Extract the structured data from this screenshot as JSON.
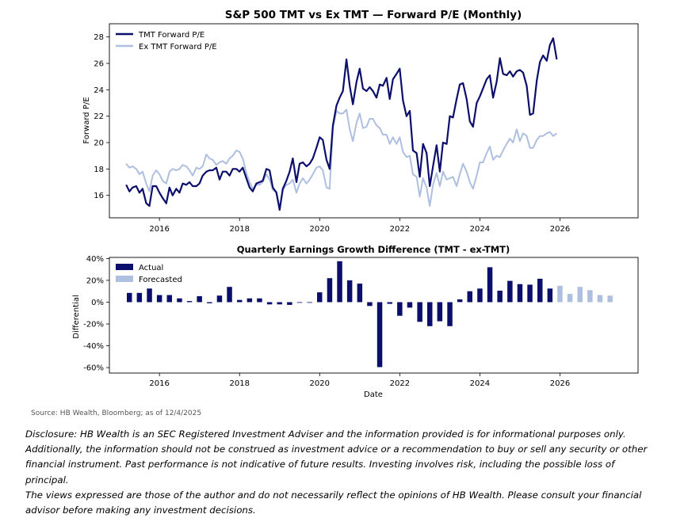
{
  "chart_data": [
    {
      "type": "line",
      "title": "S&P 500 TMT vs Ex TMT — Forward P/E (Monthly)",
      "xlabel": "",
      "ylabel": "Forward P/E",
      "xlim": [
        2014.75,
        2027.95
      ],
      "ylim": [
        14.3,
        29.0
      ],
      "xticks": [
        2016,
        2018,
        2020,
        2022,
        2024,
        2026
      ],
      "yticks": [
        16,
        18,
        20,
        22,
        24,
        26,
        28
      ],
      "legend": "top-left",
      "series": [
        {
          "name": "TMT Forward P/E",
          "color": "#0b0f6b",
          "x": [
            2015.17,
            2015.25,
            2015.33,
            2015.42,
            2015.5,
            2015.58,
            2015.67,
            2015.75,
            2015.83,
            2015.92,
            2016.0,
            2016.08,
            2016.17,
            2016.25,
            2016.33,
            2016.42,
            2016.5,
            2016.58,
            2016.67,
            2016.75,
            2016.83,
            2016.92,
            2017.0,
            2017.08,
            2017.17,
            2017.25,
            2017.33,
            2017.42,
            2017.5,
            2017.58,
            2017.67,
            2017.75,
            2017.83,
            2017.92,
            2018.0,
            2018.08,
            2018.17,
            2018.25,
            2018.33,
            2018.42,
            2018.5,
            2018.58,
            2018.67,
            2018.75,
            2018.83,
            2018.92,
            2019.0,
            2019.08,
            2019.17,
            2019.25,
            2019.33,
            2019.42,
            2019.5,
            2019.58,
            2019.67,
            2019.75,
            2019.83,
            2019.92,
            2020.0,
            2020.08,
            2020.17,
            2020.25,
            2020.33,
            2020.42,
            2020.5,
            2020.58,
            2020.67,
            2020.75,
            2020.83,
            2020.92,
            2021.0,
            2021.08,
            2021.17,
            2021.25,
            2021.33,
            2021.42,
            2021.5,
            2021.58,
            2021.67,
            2021.75,
            2021.83,
            2021.92,
            2022.0,
            2022.08,
            2022.17,
            2022.25,
            2022.33,
            2022.42,
            2022.5,
            2022.58,
            2022.67,
            2022.75,
            2022.83,
            2022.92,
            2023.0,
            2023.08,
            2023.17,
            2023.25,
            2023.33,
            2023.42,
            2023.5,
            2023.58,
            2023.67,
            2023.75,
            2023.83,
            2023.92,
            2024.0,
            2024.08,
            2024.17,
            2024.25,
            2024.33,
            2024.42,
            2024.5,
            2024.58,
            2024.67,
            2024.75,
            2024.83,
            2024.92,
            2025.0,
            2025.08,
            2025.17,
            2025.25,
            2025.33,
            2025.42,
            2025.5,
            2025.58,
            2025.67,
            2025.75,
            2025.83,
            2025.92
          ],
          "values": [
            16.8,
            16.3,
            16.6,
            16.7,
            16.2,
            16.5,
            15.4,
            15.2,
            16.7,
            16.7,
            16.2,
            15.8,
            15.4,
            16.6,
            16.0,
            16.5,
            16.2,
            16.9,
            16.8,
            17.0,
            16.7,
            16.7,
            16.9,
            17.5,
            17.8,
            17.9,
            17.9,
            18.1,
            17.2,
            17.8,
            17.8,
            17.5,
            18.0,
            18.0,
            17.8,
            18.1,
            17.3,
            16.6,
            16.3,
            16.9,
            17.0,
            17.1,
            18.0,
            17.9,
            16.6,
            16.2,
            14.9,
            16.5,
            17.1,
            17.8,
            18.8,
            17.0,
            18.4,
            18.5,
            18.2,
            18.4,
            18.8,
            19.6,
            20.4,
            20.2,
            18.7,
            18.0,
            21.3,
            22.8,
            23.4,
            23.9,
            26.3,
            24.3,
            22.9,
            24.6,
            25.6,
            24.1,
            23.9,
            24.2,
            23.9,
            23.4,
            24.4,
            24.3,
            24.9,
            23.3,
            24.8,
            25.2,
            25.6,
            23.2,
            22.0,
            22.4,
            19.4,
            19.2,
            17.4,
            19.9,
            19.2,
            16.7,
            18.2,
            19.8,
            17.8,
            20.0,
            19.9,
            22.0,
            21.9,
            23.3,
            24.4,
            24.5,
            23.3,
            21.6,
            21.2,
            23.0,
            23.5,
            24.1,
            24.8,
            25.1,
            23.4,
            24.6,
            26.4,
            25.2,
            25.1,
            25.4,
            25.0,
            25.4,
            25.5,
            25.3,
            24.3,
            22.1,
            22.2,
            24.7,
            26.1,
            26.6,
            26.2,
            27.4,
            27.9,
            26.3
          ]
        },
        {
          "name": "Ex TMT Forward P/E",
          "color": "#aebfdf",
          "x": [
            2015.17,
            2015.25,
            2015.33,
            2015.42,
            2015.5,
            2015.58,
            2015.67,
            2015.75,
            2015.83,
            2015.92,
            2016.0,
            2016.08,
            2016.17,
            2016.25,
            2016.33,
            2016.42,
            2016.5,
            2016.58,
            2016.67,
            2016.75,
            2016.83,
            2016.92,
            2017.0,
            2017.08,
            2017.17,
            2017.25,
            2017.33,
            2017.42,
            2017.5,
            2017.58,
            2017.67,
            2017.75,
            2017.83,
            2017.92,
            2018.0,
            2018.08,
            2018.17,
            2018.25,
            2018.33,
            2018.42,
            2018.5,
            2018.58,
            2018.67,
            2018.75,
            2018.83,
            2018.92,
            2019.0,
            2019.08,
            2019.17,
            2019.25,
            2019.33,
            2019.42,
            2019.5,
            2019.58,
            2019.67,
            2019.75,
            2019.83,
            2019.92,
            2020.0,
            2020.08,
            2020.17,
            2020.25,
            2020.33,
            2020.42,
            2020.5,
            2020.58,
            2020.67,
            2020.75,
            2020.83,
            2020.92,
            2021.0,
            2021.08,
            2021.17,
            2021.25,
            2021.33,
            2021.42,
            2021.5,
            2021.58,
            2021.67,
            2021.75,
            2021.83,
            2021.92,
            2022.0,
            2022.08,
            2022.17,
            2022.25,
            2022.33,
            2022.42,
            2022.5,
            2022.58,
            2022.67,
            2022.75,
            2022.83,
            2022.92,
            2023.0,
            2023.08,
            2023.17,
            2023.25,
            2023.33,
            2023.42,
            2023.5,
            2023.58,
            2023.67,
            2023.75,
            2023.83,
            2023.92,
            2024.0,
            2024.08,
            2024.17,
            2024.25,
            2024.33,
            2024.42,
            2024.5,
            2024.58,
            2024.67,
            2024.75,
            2024.83,
            2024.92,
            2025.0,
            2025.08,
            2025.17,
            2025.25,
            2025.33,
            2025.42,
            2025.5,
            2025.58,
            2025.67,
            2025.75,
            2025.83,
            2025.92
          ],
          "values": [
            18.4,
            18.1,
            18.2,
            18.0,
            17.6,
            17.8,
            16.9,
            16.3,
            17.5,
            17.9,
            17.6,
            17.1,
            16.9,
            17.8,
            18.0,
            17.9,
            18.0,
            18.3,
            18.2,
            17.9,
            17.5,
            18.1,
            18.0,
            18.2,
            19.1,
            18.8,
            18.7,
            18.3,
            18.5,
            18.6,
            18.4,
            18.8,
            19.0,
            19.4,
            19.3,
            18.8,
            17.7,
            17.0,
            16.5,
            16.8,
            16.8,
            17.0,
            17.6,
            17.2,
            16.4,
            16.3,
            15.0,
            16.4,
            16.8,
            16.9,
            17.2,
            16.2,
            16.9,
            17.3,
            16.9,
            17.2,
            17.6,
            18.1,
            18.2,
            17.9,
            16.6,
            16.5,
            21.1,
            22.4,
            22.2,
            22.2,
            22.5,
            21.0,
            20.1,
            21.5,
            22.2,
            21.1,
            21.2,
            21.8,
            21.8,
            21.3,
            21.1,
            20.6,
            20.6,
            19.9,
            20.4,
            19.9,
            20.4,
            19.3,
            18.9,
            19.0,
            17.6,
            17.4,
            15.9,
            17.3,
            16.6,
            15.2,
            16.8,
            17.7,
            16.7,
            17.8,
            17.2,
            17.3,
            17.4,
            16.7,
            17.6,
            18.4,
            17.8,
            17.0,
            16.5,
            17.5,
            18.5,
            18.5,
            19.2,
            19.7,
            18.7,
            19.0,
            18.9,
            19.4,
            19.9,
            20.3,
            20.0,
            21.0,
            20.1,
            20.7,
            20.5,
            19.6,
            19.6,
            20.2,
            20.5,
            20.5,
            20.7,
            20.8,
            20.5,
            20.7
          ]
        }
      ]
    },
    {
      "type": "bar",
      "title": "Quarterly Earnings Growth Difference (TMT - ex-TMT)",
      "xlabel": "Date",
      "ylabel": "Differential",
      "xlim": [
        2014.75,
        2027.95
      ],
      "ylim": [
        -65,
        41
      ],
      "xticks": [
        2016,
        2018,
        2020,
        2022,
        2024,
        2026
      ],
      "yticks": [
        40,
        20,
        0,
        -20,
        -40,
        -60
      ],
      "ytick_labels": [
        "40%",
        "20%",
        "0%",
        "-20%",
        "-40%",
        "-60%"
      ],
      "legend": "top-left",
      "series": [
        {
          "name": "Actual",
          "color": "#0b0f6b",
          "x": [
            2015.25,
            2015.5,
            2015.75,
            2016.0,
            2016.25,
            2016.5,
            2016.75,
            2017.0,
            2017.25,
            2017.5,
            2017.75,
            2018.0,
            2018.25,
            2018.5,
            2018.75,
            2019.0,
            2019.25,
            2019.5,
            2019.75,
            2020.0,
            2020.25,
            2020.5,
            2020.75,
            2021.0,
            2021.25,
            2021.5,
            2021.75,
            2022.0,
            2022.25,
            2022.5,
            2022.75,
            2023.0,
            2023.25,
            2023.5,
            2023.75,
            2024.0,
            2024.25,
            2024.5,
            2024.75,
            2025.0,
            2025.25,
            2025.5,
            2025.75
          ],
          "values": [
            8.5,
            8.5,
            12.5,
            6.5,
            6.5,
            3.5,
            1.0,
            5.5,
            -1.0,
            6.0,
            14.0,
            2.0,
            3.5,
            3.5,
            -2.0,
            -2.0,
            -2.5,
            0.0,
            -0.5,
            9.0,
            22.0,
            37.5,
            20.0,
            17.0,
            -3.5,
            -59.5,
            -1.5,
            -12.5,
            -5.0,
            -18.0,
            -22.0,
            -17.5,
            -22.0,
            2.5,
            10.0,
            12.5,
            32.0,
            10.5,
            19.5,
            16.5,
            16.0,
            21.5,
            12.5
          ]
        },
        {
          "name": "Forecasted",
          "color": "#aebfdf",
          "x": [
            2026.0,
            2026.25,
            2026.5,
            2026.75,
            2027.0,
            2027.25
          ],
          "values": [
            15.0,
            7.5,
            14.0,
            11.0,
            6.5,
            6.0
          ]
        }
      ]
    }
  ],
  "source": "Source: HB Wealth, Bloomberg; as of 12/4/2025",
  "disclosure_lines": [
    "Disclosure: HB Wealth is an SEC Registered Investment Adviser and the information provided is for informational purposes only.",
    "Additionally, the information should not be construed as investment advice or a recommendation to buy or sell any security or other",
    "financial instrument. Past performance is not indicative of future results. Investing involves risk, including the possible loss of principal.",
    "The views expressed are those of the author and do not necessarily reflect the opinions of HB Wealth. Please consult your financial",
    "advisor before making any investment decisions."
  ]
}
